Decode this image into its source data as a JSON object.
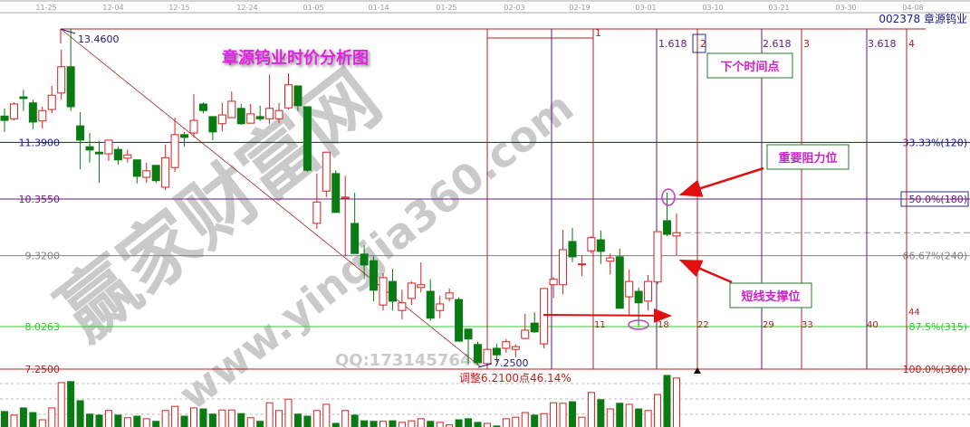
{
  "stock_label": "002378 章源钨业",
  "title": "章源钨业时价分析图",
  "watermark": {
    "site_name": "赢家财富网",
    "url": "www.yingjia360.com",
    "qq": "QQ:1731457646"
  },
  "annotations": {
    "next_time_point": "下个时间点",
    "key_resistance": "重要阻力位",
    "short_term_support": "短线支撑位",
    "adjustment": "调整6.2100点46.14%",
    "high_label": "13.4600",
    "low_label": "7.2500"
  },
  "colors": {
    "up": "#d42020",
    "down": "#0a7a12",
    "annotation_text": "#cc22cc",
    "box_border": "#2a7a2a"
  },
  "chart_data": {
    "type": "candlestick",
    "x_tick_labels": [
      "11-25",
      "12-04",
      "12-15",
      "12-24",
      "01-05",
      "01-14",
      "01-25",
      "02-03",
      "02-19",
      "03-01",
      "03-10",
      "03-21",
      "03-30",
      "04-08"
    ],
    "price_levels": [
      {
        "price": "11.3900",
        "pct_label": "33.33%(120)",
        "color": "#1a1a80"
      },
      {
        "price": "10.3550",
        "pct_label": "50.0%(180)",
        "color": "#6a1a80"
      },
      {
        "price": "9.3200",
        "pct_label": "66.67%(240)",
        "color": "#808080"
      },
      {
        "price": "8.0263",
        "pct_label": "87.5%(315)",
        "color": "#33cc33"
      },
      {
        "price": "7.2500",
        "pct_label": "100.0%(360)",
        "color": "#b02020"
      }
    ],
    "dashed_level": 9.74,
    "ylim": [
      7.25,
      13.46
    ],
    "fib_time_labels": [
      "1",
      "1.618",
      "2",
      "2.618",
      "3",
      "3.618",
      "4"
    ],
    "bar_count_labels": [
      "11",
      "18",
      "22",
      "29",
      "33",
      "40",
      "44"
    ],
    "ohlc": [
      [
        11.87,
        12.01,
        11.58,
        11.79
      ],
      [
        11.82,
        12.12,
        11.79,
        12.09
      ],
      [
        12.22,
        12.35,
        11.96,
        12.19
      ],
      [
        12.11,
        12.17,
        11.63,
        11.76
      ],
      [
        11.78,
        12.04,
        11.64,
        11.97
      ],
      [
        11.99,
        12.42,
        11.92,
        12.25
      ],
      [
        12.29,
        13.08,
        12.17,
        12.77
      ],
      [
        12.77,
        13.46,
        11.96,
        12.04
      ],
      [
        11.69,
        11.94,
        10.9,
        11.43
      ],
      [
        11.31,
        11.56,
        11.02,
        11.25
      ],
      [
        11.21,
        11.41,
        10.65,
        11.18
      ],
      [
        11.18,
        11.43,
        11.05,
        11.43
      ],
      [
        11.26,
        11.31,
        10.98,
        11.07
      ],
      [
        11.1,
        11.26,
        11.02,
        11.16
      ],
      [
        11.07,
        11.07,
        10.64,
        10.77
      ],
      [
        10.75,
        11.02,
        10.65,
        10.87
      ],
      [
        10.97,
        10.97,
        10.65,
        10.69
      ],
      [
        10.57,
        11.35,
        10.52,
        11.11
      ],
      [
        10.93,
        11.84,
        10.85,
        11.53
      ],
      [
        11.53,
        11.58,
        11.31,
        11.48
      ],
      [
        11.56,
        12.27,
        11.48,
        11.79
      ],
      [
        12.09,
        12.12,
        11.92,
        11.97
      ],
      [
        11.86,
        11.86,
        11.43,
        11.58
      ],
      [
        11.73,
        12.11,
        11.59,
        11.89
      ],
      [
        11.84,
        12.32,
        11.84,
        12.14
      ],
      [
        12.01,
        12.09,
        11.71,
        11.73
      ],
      [
        11.74,
        12.09,
        11.74,
        11.91
      ],
      [
        11.86,
        12.06,
        11.78,
        11.82
      ],
      [
        11.82,
        12.63,
        11.73,
        12.01
      ],
      [
        11.82,
        12.11,
        11.74,
        11.97
      ],
      [
        12.02,
        12.65,
        11.99,
        12.44
      ],
      [
        12.42,
        12.42,
        11.96,
        12.06
      ],
      [
        12.04,
        12.04,
        10.85,
        10.88
      ],
      [
        9.91,
        10.82,
        9.81,
        10.3
      ],
      [
        10.5,
        11.21,
        10.39,
        11.21
      ],
      [
        10.82,
        10.88,
        10.11,
        10.11
      ],
      [
        10.37,
        10.78,
        9.31,
        10.39
      ],
      [
        9.91,
        10.47,
        9.36,
        9.36
      ],
      [
        9.35,
        9.51,
        8.89,
        9.15
      ],
      [
        9.23,
        9.31,
        8.49,
        8.69
      ],
      [
        8.42,
        9.0,
        8.32,
        8.92
      ],
      [
        8.85,
        9.08,
        8.32,
        8.49
      ],
      [
        8.32,
        8.7,
        8.16,
        8.46
      ],
      [
        8.54,
        8.85,
        8.42,
        8.82
      ],
      [
        8.74,
        9.2,
        8.65,
        8.79
      ],
      [
        8.67,
        8.89,
        8.13,
        8.18
      ],
      [
        8.32,
        8.59,
        8.18,
        8.44
      ],
      [
        8.54,
        8.72,
        8.49,
        8.64
      ],
      [
        8.52,
        8.56,
        7.76,
        7.76
      ],
      [
        7.98,
        7.98,
        7.35,
        7.8
      ],
      [
        7.7,
        7.75,
        7.33,
        7.37
      ],
      [
        7.35,
        7.63,
        7.25,
        7.61
      ],
      [
        7.63,
        7.71,
        7.38,
        7.51
      ],
      [
        7.63,
        7.8,
        7.55,
        7.75
      ],
      [
        7.61,
        7.7,
        7.47,
        7.66
      ],
      [
        7.81,
        8.26,
        7.8,
        7.96
      ],
      [
        8.09,
        8.29,
        7.91,
        7.93
      ],
      [
        7.71,
        8.72,
        7.63,
        8.72
      ],
      [
        8.79,
        8.93,
        8.55,
        8.89
      ],
      [
        8.79,
        9.79,
        8.62,
        9.43
      ],
      [
        9.58,
        9.83,
        9.2,
        9.3
      ],
      [
        9.16,
        9.33,
        8.95,
        9.17
      ],
      [
        9.41,
        9.68,
        9.36,
        9.65
      ],
      [
        9.61,
        9.78,
        9.17,
        9.4
      ],
      [
        9.22,
        9.36,
        8.98,
        9.28
      ],
      [
        9.3,
        9.45,
        8.36,
        8.36
      ],
      [
        8.57,
        9.07,
        8.24,
        8.85
      ],
      [
        8.67,
        8.74,
        8.03,
        8.46
      ],
      [
        8.49,
        8.97,
        8.32,
        8.85
      ],
      [
        8.84,
        9.76,
        8.8,
        9.76
      ],
      [
        9.96,
        10.47,
        9.68,
        9.71
      ],
      [
        9.68,
        10.09,
        9.33,
        9.74
      ]
    ],
    "volume_relative_pct": [
      30,
      23,
      37,
      28,
      14,
      37,
      86,
      88,
      51,
      25,
      23,
      32,
      23,
      18,
      21,
      16,
      11,
      32,
      40,
      21,
      37,
      35,
      25,
      33,
      33,
      26,
      18,
      11,
      47,
      32,
      54,
      25,
      21,
      32,
      44,
      7,
      32,
      23,
      12,
      11,
      11,
      12,
      9,
      12,
      16,
      11,
      9,
      4,
      14,
      16,
      9,
      7,
      2,
      16,
      19,
      28,
      23,
      26,
      47,
      46,
      49,
      19,
      67,
      53,
      35,
      46,
      44,
      35,
      32,
      63,
      100,
      95
    ]
  }
}
